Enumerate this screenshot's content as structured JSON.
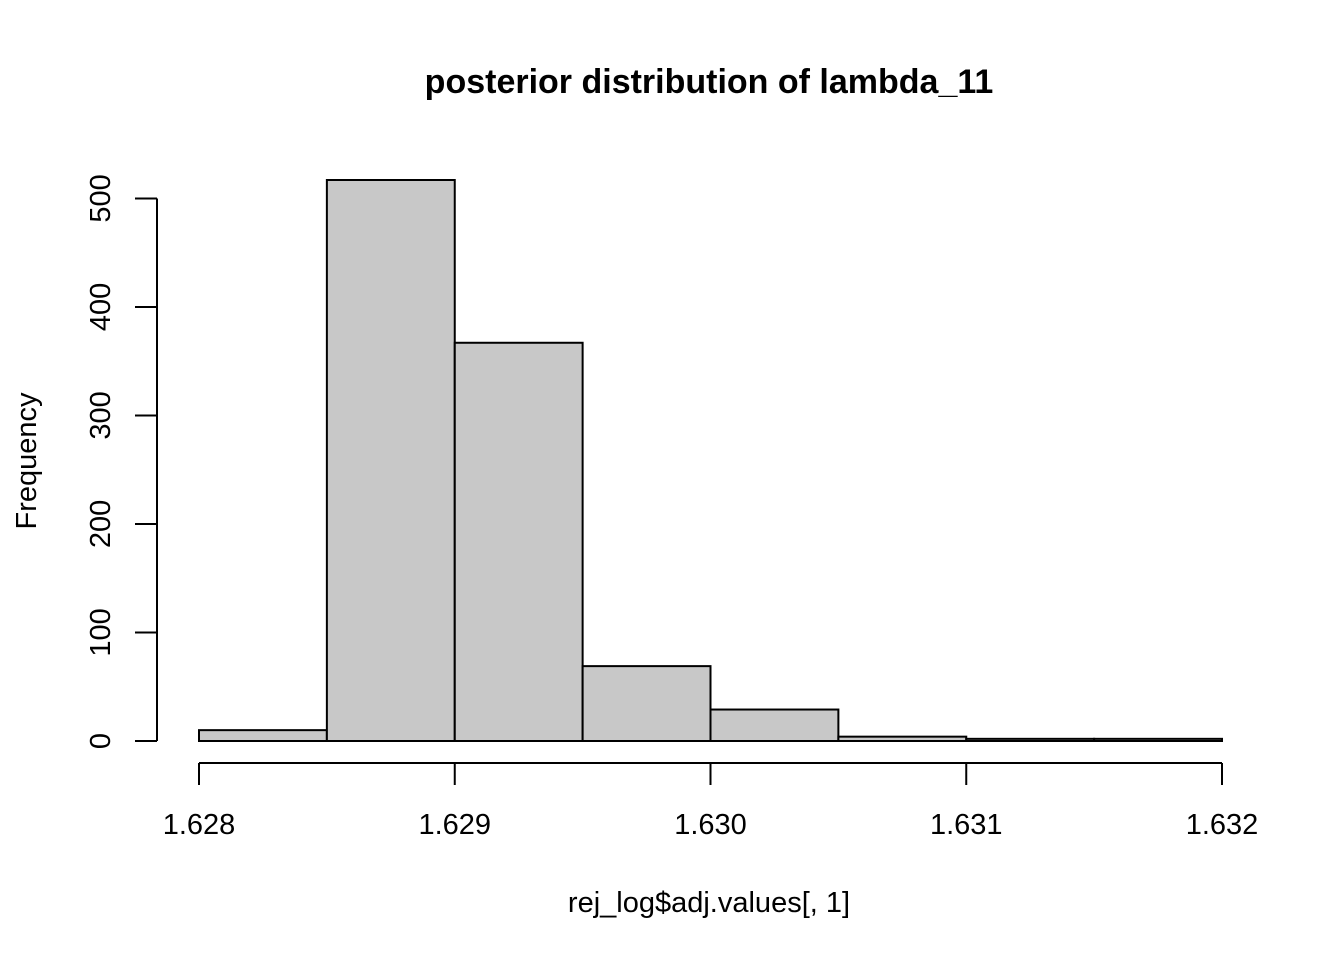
{
  "chart_data": {
    "type": "bar",
    "title": "posterior distribution of lambda_11",
    "xlabel": "rej_log$adj.values[, 1]",
    "ylabel": "Frequency",
    "bins": [
      {
        "x0": 1.628,
        "x1": 1.6285,
        "count": 10
      },
      {
        "x0": 1.6285,
        "x1": 1.629,
        "count": 517
      },
      {
        "x0": 1.629,
        "x1": 1.6295,
        "count": 367
      },
      {
        "x0": 1.6295,
        "x1": 1.63,
        "count": 69
      },
      {
        "x0": 1.63,
        "x1": 1.6305,
        "count": 29
      },
      {
        "x0": 1.6305,
        "x1": 1.631,
        "count": 4
      },
      {
        "x0": 1.631,
        "x1": 1.6315,
        "count": 2
      },
      {
        "x0": 1.6315,
        "x1": 1.632,
        "count": 2
      }
    ],
    "xlim": [
      1.628,
      1.632
    ],
    "ylim": [
      0,
      517
    ],
    "x_ticks": [
      1.628,
      1.629,
      1.63,
      1.631,
      1.632
    ],
    "x_tick_labels": [
      "1.628",
      "1.629",
      "1.630",
      "1.631",
      "1.632"
    ],
    "y_ticks": [
      0,
      100,
      200,
      300,
      400,
      500
    ],
    "y_tick_labels": [
      "0",
      "100",
      "200",
      "300",
      "400",
      "500"
    ],
    "bar_color": "#c8c8c8",
    "grid": false,
    "legend": "none"
  }
}
